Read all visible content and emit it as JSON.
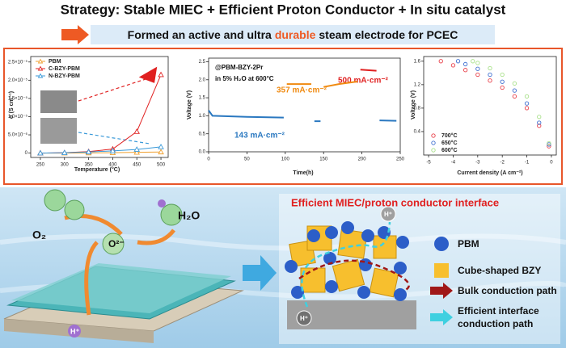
{
  "header": {
    "title": "Strategy: Stable MIEC + Efficient Proton Conductor + In situ catalyst",
    "subtitle_parts": [
      "Formed an active and ultra",
      "durable",
      "steam electrode for PCEC"
    ]
  },
  "chart_data": [
    {
      "type": "line",
      "xlabel": "Temperature (°C)",
      "ylabel": "σ (S cm⁻¹)",
      "x": [
        250,
        300,
        350,
        400,
        450,
        500
      ],
      "xlim": [
        230,
        515
      ],
      "xticks": [
        250,
        300,
        350,
        400,
        450,
        500
      ],
      "ylim": [
        -1.2e-06,
        2.65e-05
      ],
      "yticks": [
        0,
        {
          "value": 5e-06,
          "label": "5.0×10⁻⁶"
        },
        {
          "value": 1e-05,
          "label": "1.0×10⁻⁵"
        },
        {
          "value": 1.5e-05,
          "label": "1.5×10⁻⁵"
        },
        {
          "value": 2e-05,
          "label": "2.0×10⁻⁵"
        },
        {
          "value": 2.5e-05,
          "label": "2.5×10⁻⁵"
        }
      ],
      "markers": true,
      "legend": "upper left",
      "series": [
        {
          "name": "PBM",
          "color": "#f0a030",
          "values": [
            0,
            0,
            5e-08,
            1e-07,
            2e-07,
            3e-07
          ]
        },
        {
          "name": "C-BZY-PBM",
          "color": "#e02020",
          "values": [
            0,
            1e-07,
            4e-07,
            1.1e-06,
            5.9e-06,
            2.15e-05
          ]
        },
        {
          "name": "N-BZY-PBM",
          "color": "#3a9ad9",
          "values": [
            0,
            1e-07,
            3e-07,
            6e-07,
            1e-06,
            1.7e-06
          ]
        }
      ]
    },
    {
      "type": "line",
      "xlabel": "Time(h)",
      "ylabel": "Voltage (V)",
      "x": [
        0,
        5,
        50,
        98,
        102,
        134,
        138,
        146,
        150,
        170,
        194,
        198,
        219,
        223,
        245
      ],
      "xlim": [
        0,
        250
      ],
      "xticks": [
        0,
        50,
        100,
        150,
        200,
        250
      ],
      "ylim": [
        0,
        2.6
      ],
      "yticks": [
        {
          "value": 0,
          "label": "0.0"
        },
        0.5,
        {
          "value": 1,
          "label": "1.0"
        },
        1.5,
        {
          "value": 2,
          "label": "2.0"
        },
        2.5
      ],
      "markers": false,
      "annotations": [
        "@PBM-BZY-2Pr",
        "in 5% H₂O at 600°C",
        "143 mA·cm⁻²",
        "357 mA·cm⁻²",
        "500 mA·cm⁻²"
      ],
      "series": [
        {
          "color": "#2a78c0",
          "values": [
            1.15,
            1.0,
            0.97,
            0.95,
            null,
            null,
            0.85,
            0.85,
            null,
            null,
            null,
            null,
            null,
            0.87,
            0.86
          ]
        },
        {
          "color": "#f08a10",
          "values": [
            null,
            null,
            null,
            null,
            1.88,
            1.88,
            null,
            null,
            1.8,
            1.88,
            1.95,
            null,
            null,
            null,
            null
          ]
        },
        {
          "color": "#e02020",
          "values": [
            null,
            null,
            null,
            null,
            null,
            null,
            null,
            null,
            null,
            null,
            null,
            2.28,
            2.25,
            null,
            null
          ]
        }
      ]
    },
    {
      "type": "scatter",
      "xlabel": "Current density (A cm⁻²)",
      "ylabel": "Voltage (V)",
      "xlim": [
        -5.2,
        0.2
      ],
      "xticks": [
        -5,
        -4,
        -3,
        -2,
        -1,
        0
      ],
      "ylim": [
        0,
        1.68
      ],
      "yticks": [
        0.4,
        0.8,
        1.2,
        1.6
      ],
      "legend": "lower left",
      "series": [
        {
          "name": "700°C",
          "color": "#e8404a",
          "x": [
            -4.5,
            -4,
            -3.5,
            -3,
            -2.5,
            -2,
            -1.5,
            -1,
            -0.5,
            -0.1
          ],
          "values": [
            1.6,
            1.53,
            1.45,
            1.37,
            1.27,
            1.15,
            1,
            0.8,
            0.5,
            0.15
          ]
        },
        {
          "name": "650°C",
          "color": "#3f6fd0",
          "x": [
            -3.8,
            -3.5,
            -3,
            -2.5,
            -2,
            -1.5,
            -1,
            -0.5,
            -0.1
          ],
          "values": [
            1.6,
            1.55,
            1.47,
            1.37,
            1.25,
            1.1,
            0.88,
            0.55,
            0.18
          ]
        },
        {
          "name": "600°C",
          "color": "#a8e08a",
          "x": [
            -3.2,
            -3,
            -2.5,
            -2,
            -1.5,
            -1,
            -0.5,
            -0.1
          ],
          "values": [
            1.6,
            1.57,
            1.48,
            1.37,
            1.22,
            1,
            0.65,
            0.2
          ]
        }
      ]
    }
  ],
  "diagram": {
    "electrode": {
      "o2": "O₂",
      "h2o": "H₂O",
      "oxide_ion": "O²⁻",
      "proton": "H⁺"
    },
    "interface": {
      "title": "Efficient MIEC/proton conductor interface",
      "proton_labels": [
        "H⁺",
        "H⁺"
      ],
      "legend": [
        "PBM",
        "Cube-shaped BZY",
        "Bulk conduction path",
        "Efficient interface",
        "conduction path"
      ]
    }
  }
}
